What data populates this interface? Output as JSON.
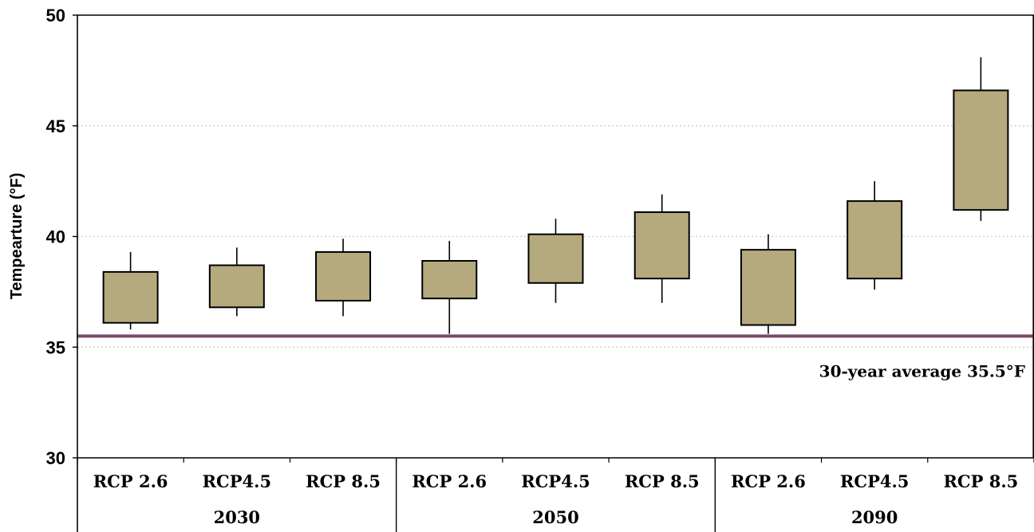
{
  "chart_data": {
    "type": "box",
    "title": "",
    "ylabel": "Tempearture (°F)",
    "ylim": [
      30,
      50
    ],
    "yticks": [
      30,
      35,
      40,
      45,
      50
    ],
    "grid": true,
    "groups": [
      {
        "label": "2030",
        "categories": [
          "RCP 2.6",
          "RCP4.5",
          "RCP 8.5"
        ]
      },
      {
        "label": "2050",
        "categories": [
          "RCP 2.6",
          "RCP4.5",
          "RCP 8.5"
        ]
      },
      {
        "label": "2090",
        "categories": [
          "RCP 2.6",
          "RCP4.5",
          "RCP 8.5"
        ]
      }
    ],
    "boxes": [
      {
        "group": "2030",
        "category": "RCP 2.6",
        "min": 35.8,
        "q1": 36.1,
        "q3": 38.4,
        "max": 39.3
      },
      {
        "group": "2030",
        "category": "RCP4.5",
        "min": 36.4,
        "q1": 36.8,
        "q3": 38.7,
        "max": 39.5
      },
      {
        "group": "2030",
        "category": "RCP 8.5",
        "min": 36.4,
        "q1": 37.1,
        "q3": 39.3,
        "max": 39.9
      },
      {
        "group": "2050",
        "category": "RCP 2.6",
        "min": 35.6,
        "q1": 37.2,
        "q3": 38.9,
        "max": 39.8
      },
      {
        "group": "2050",
        "category": "RCP4.5",
        "min": 37.0,
        "q1": 37.9,
        "q3": 40.1,
        "max": 40.8
      },
      {
        "group": "2050",
        "category": "RCP 8.5",
        "min": 37.0,
        "q1": 38.1,
        "q3": 41.1,
        "max": 41.9
      },
      {
        "group": "2090",
        "category": "RCP 2.6",
        "min": 35.6,
        "q1": 36.0,
        "q3": 39.4,
        "max": 40.1
      },
      {
        "group": "2090",
        "category": "RCP4.5",
        "min": 37.6,
        "q1": 38.1,
        "q3": 41.6,
        "max": 42.5
      },
      {
        "group": "2090",
        "category": "RCP 8.5",
        "min": 40.7,
        "q1": 41.2,
        "q3": 46.6,
        "max": 48.1
      }
    ],
    "reference_line": {
      "value": 35.5,
      "label": "30-year average 35.5°F",
      "color": "#7a4a6a"
    },
    "colors": {
      "box_fill": "#b5aa7e",
      "box_stroke": "#000000",
      "grid": "#c8c8c8"
    }
  }
}
